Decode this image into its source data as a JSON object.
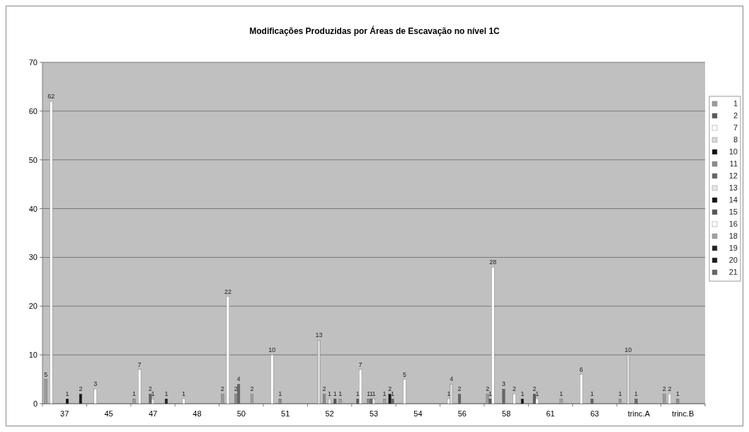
{
  "chart_data": {
    "type": "bar",
    "title": "Modificações Produzidas por Áreas de Escavação no nível 1C",
    "categories": [
      "37",
      "45",
      "47",
      "48",
      "50",
      "51",
      "52",
      "53",
      "54",
      "56",
      "58",
      "61",
      "63",
      "trinc.A",
      "trinc.B"
    ],
    "series": [
      {
        "name": "1",
        "color": "#9a9a9a",
        "values": [
          5,
          null,
          1,
          null,
          2,
          null,
          null,
          null,
          null,
          null,
          2,
          null,
          null,
          1,
          2
        ]
      },
      {
        "name": "2",
        "color": "#5a5a5a",
        "values": [
          null,
          null,
          null,
          null,
          null,
          null,
          null,
          1,
          null,
          null,
          1,
          2,
          null,
          null,
          null
        ]
      },
      {
        "name": "7",
        "color": "#ffffff",
        "values": [
          62,
          3,
          7,
          1,
          22,
          10,
          null,
          7,
          5,
          1,
          28,
          1,
          6,
          null,
          2
        ]
      },
      {
        "name": "8",
        "color": "#d8d8d8",
        "values": [
          null,
          null,
          null,
          null,
          null,
          null,
          13,
          null,
          null,
          4,
          null,
          null,
          null,
          10,
          null
        ]
      },
      {
        "name": "10",
        "color": "#111111",
        "values": [
          null,
          null,
          null,
          null,
          null,
          null,
          null,
          null,
          null,
          null,
          null,
          null,
          null,
          null,
          null
        ]
      },
      {
        "name": "11",
        "color": "#8a8a8a",
        "values": [
          null,
          null,
          null,
          null,
          2,
          1,
          2,
          1,
          null,
          null,
          null,
          null,
          null,
          null,
          1
        ]
      },
      {
        "name": "12",
        "color": "#666666",
        "values": [
          null,
          null,
          2,
          null,
          4,
          null,
          null,
          1,
          null,
          2,
          3,
          null,
          1,
          1,
          null
        ]
      },
      {
        "name": "13",
        "color": "#e6e6e6",
        "values": [
          null,
          null,
          1,
          null,
          null,
          null,
          1,
          1,
          null,
          null,
          null,
          null,
          null,
          null,
          null
        ]
      },
      {
        "name": "14",
        "color": "#111111",
        "values": [
          1,
          null,
          null,
          null,
          null,
          null,
          null,
          null,
          null,
          null,
          null,
          null,
          null,
          null,
          null
        ]
      },
      {
        "name": "15",
        "color": "#555555",
        "values": [
          null,
          null,
          null,
          null,
          null,
          null,
          1,
          null,
          null,
          null,
          null,
          null,
          null,
          null,
          null
        ]
      },
      {
        "name": "16",
        "color": "#ffffff",
        "values": [
          null,
          null,
          null,
          null,
          null,
          null,
          null,
          null,
          null,
          null,
          2,
          null,
          null,
          null,
          null
        ]
      },
      {
        "name": "18",
        "color": "#a0a0a0",
        "values": [
          null,
          null,
          null,
          null,
          2,
          null,
          1,
          1,
          null,
          null,
          null,
          1,
          null,
          null,
          null
        ]
      },
      {
        "name": "19",
        "color": "#222222",
        "values": [
          null,
          null,
          1,
          null,
          null,
          null,
          null,
          null,
          null,
          null,
          null,
          null,
          null,
          null,
          null
        ]
      },
      {
        "name": "20",
        "color": "#1a1a1a",
        "values": [
          2,
          null,
          null,
          null,
          null,
          null,
          null,
          2,
          null,
          null,
          1,
          null,
          null,
          null,
          null
        ]
      },
      {
        "name": "21",
        "color": "#666666",
        "values": [
          null,
          null,
          null,
          null,
          null,
          null,
          null,
          1,
          null,
          null,
          null,
          null,
          null,
          null,
          null
        ]
      }
    ],
    "ylim": [
      0,
      70
    ],
    "yticks": [
      0,
      10,
      20,
      30,
      40,
      50,
      60,
      70
    ],
    "grid": "y",
    "legend": "right",
    "data_labels": true
  }
}
